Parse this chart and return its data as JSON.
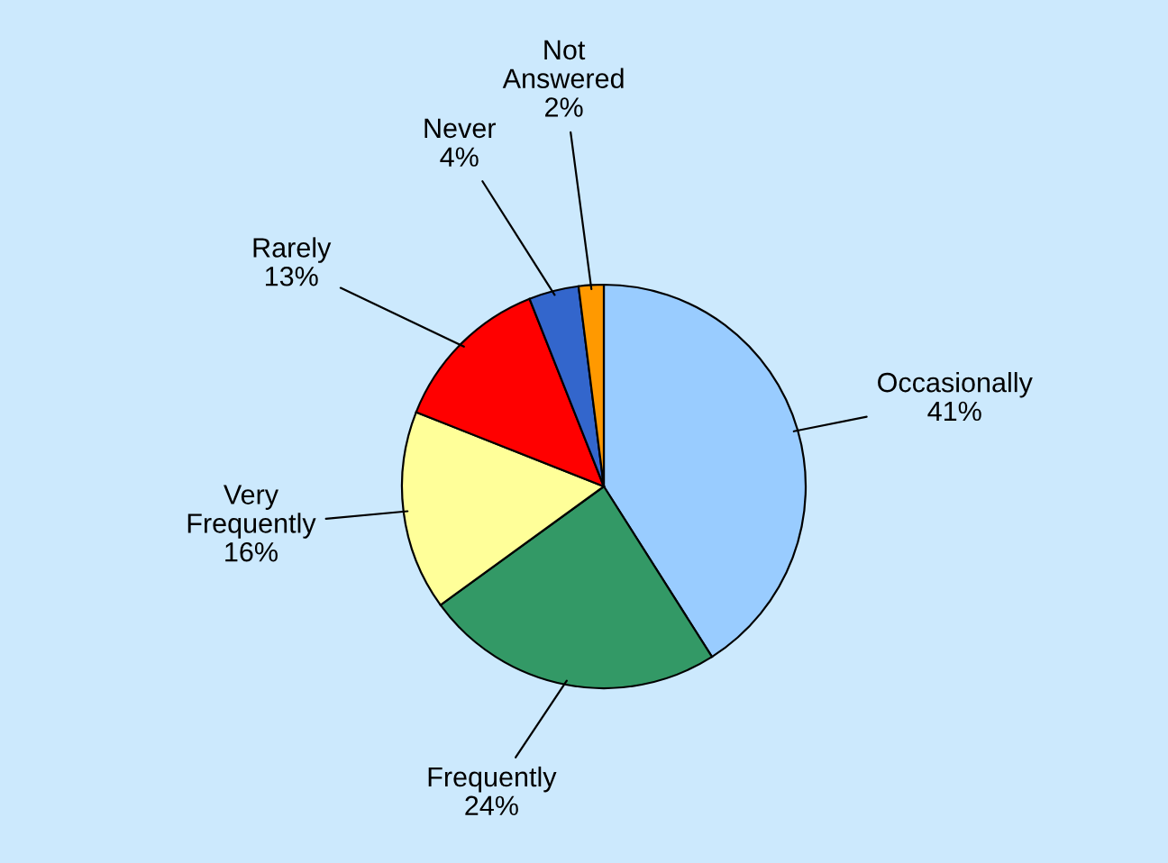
{
  "chart_data": {
    "type": "pie",
    "categories": [
      "Occasionally",
      "Frequently",
      "Very Frequently",
      "Rarely",
      "Never",
      "Not Answered"
    ],
    "values": [
      41,
      24,
      16,
      13,
      4,
      2
    ],
    "value_labels": [
      "41%",
      "24%",
      "16%",
      "13%",
      "4%",
      "2%"
    ],
    "colors": [
      "#99ccff",
      "#339966",
      "#ffff99",
      "#ff0000",
      "#3366cc",
      "#ff9900"
    ]
  }
}
